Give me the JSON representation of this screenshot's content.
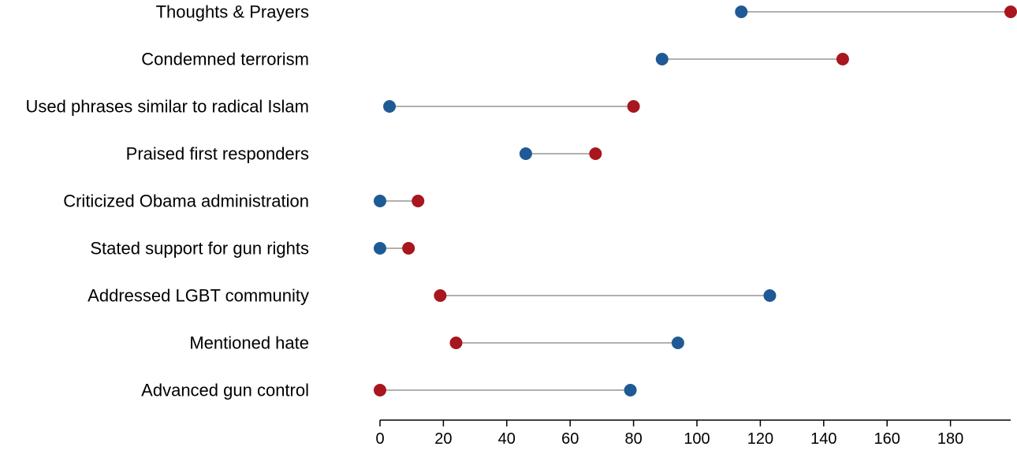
{
  "chart_data": {
    "type": "dumbbell",
    "categories": [
      "Thoughts & Prayers",
      "Condemned terrorism",
      "Used phrases similar to radical Islam",
      "Praised first responders",
      "Criticized Obama administration",
      "Stated support for gun rights",
      "Addressed LGBT community",
      "Mentioned hate",
      "Advanced gun control"
    ],
    "series": [
      {
        "color": "#1f5a96",
        "values": [
          114,
          89,
          3,
          46,
          0,
          0,
          123,
          94,
          79
        ]
      },
      {
        "color": "#a8161e",
        "values": [
          199,
          146,
          80,
          68,
          12,
          9,
          19,
          24,
          0
        ]
      }
    ],
    "xticks": [
      0,
      20,
      40,
      60,
      80,
      100,
      120,
      140,
      160,
      180
    ],
    "xlim": [
      0,
      199
    ],
    "connector_color": "#b0b0b0",
    "title": "",
    "xlabel": "",
    "ylabel": "",
    "grid": false,
    "legend": "none"
  }
}
